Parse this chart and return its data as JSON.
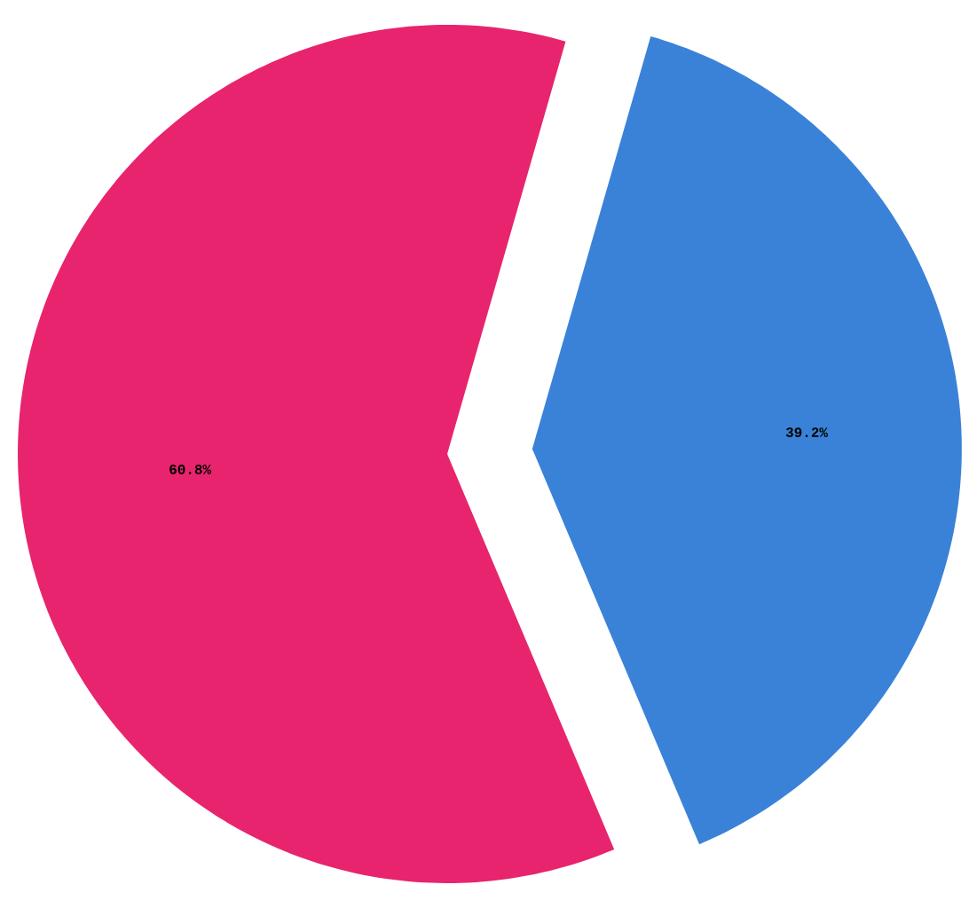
{
  "chart_data": {
    "type": "pie",
    "values": [
      60.8,
      39.2
    ],
    "colors": [
      "#e8246e",
      "#3a82d8"
    ],
    "value_labels": [
      "60.8%",
      "39.2%"
    ]
  }
}
